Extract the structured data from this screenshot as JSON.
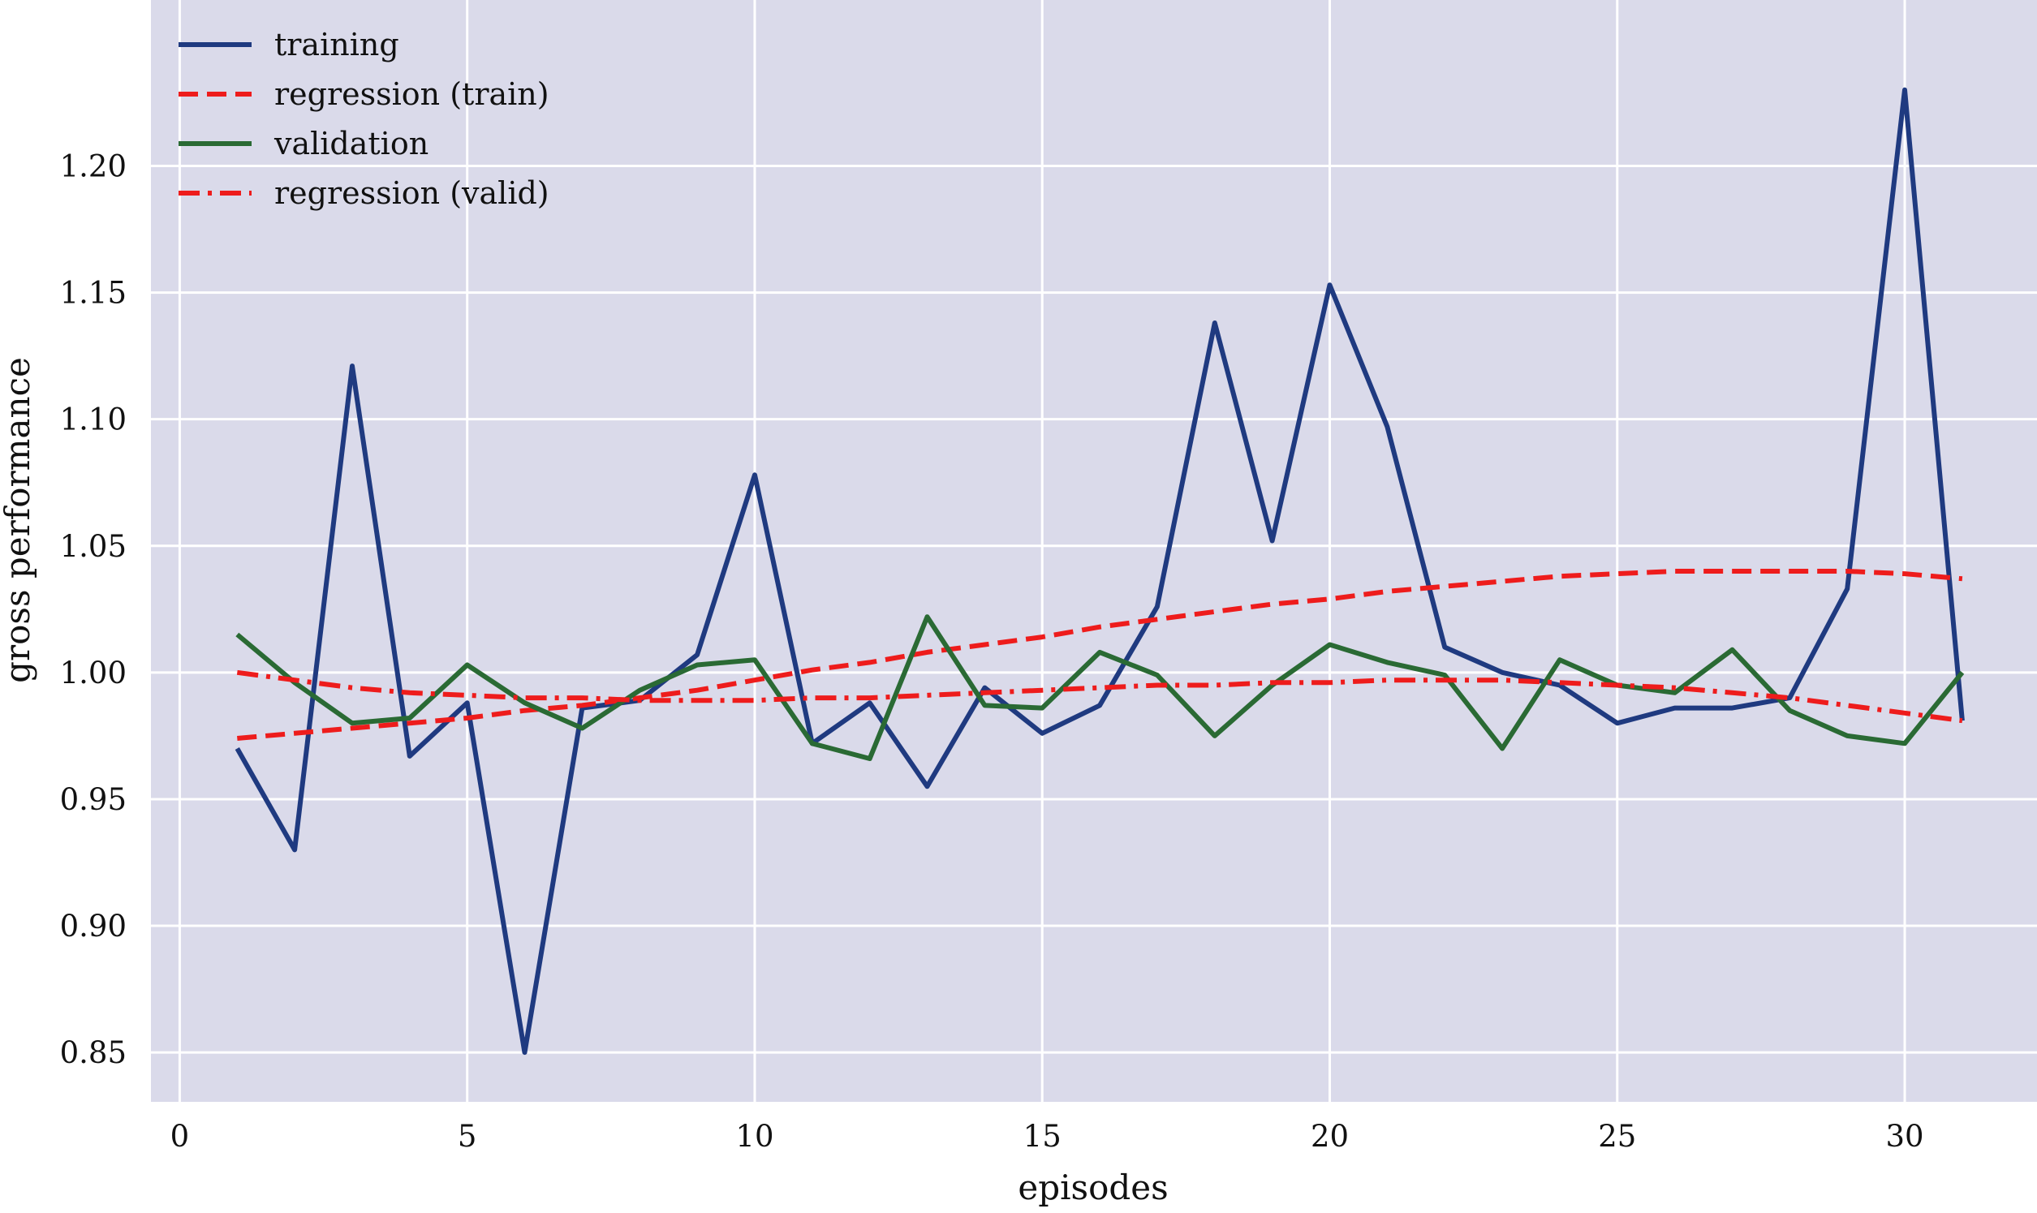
{
  "chart_data": {
    "type": "line",
    "title": "",
    "xlabel": "episodes",
    "ylabel": "gross performance",
    "xlim": [
      -0.5,
      32.3
    ],
    "ylim": [
      0.8305,
      1.2655
    ],
    "xticks": [
      0,
      5,
      10,
      15,
      20,
      25,
      30
    ],
    "yticks": [
      0.85,
      0.9,
      0.95,
      1.0,
      1.05,
      1.1,
      1.15,
      1.2
    ],
    "xtick_labels": [
      "0",
      "5",
      "10",
      "15",
      "20",
      "25",
      "30"
    ],
    "ytick_labels": [
      "0.85",
      "0.90",
      "0.95",
      "1.00",
      "1.05",
      "1.10",
      "1.15",
      "1.20"
    ],
    "grid": true,
    "legend_position": "top-left",
    "background_color": "#dadaea",
    "grid_color": "#ffffff",
    "x": [
      1,
      2,
      3,
      4,
      5,
      6,
      7,
      8,
      9,
      10,
      11,
      12,
      13,
      14,
      15,
      16,
      17,
      18,
      19,
      20,
      21,
      22,
      23,
      24,
      25,
      26,
      27,
      28,
      29,
      30,
      31
    ],
    "series": [
      {
        "name": "training",
        "color": "#1f3a80",
        "style": "solid",
        "values": [
          0.97,
          0.93,
          1.121,
          0.967,
          0.988,
          0.85,
          0.986,
          0.989,
          1.007,
          1.078,
          0.972,
          0.988,
          0.955,
          0.994,
          0.976,
          0.987,
          1.026,
          1.138,
          1.052,
          1.153,
          1.097,
          1.01,
          1.0,
          0.995,
          0.98,
          0.986,
          0.986,
          0.99,
          1.033,
          1.23,
          0.981
        ]
      },
      {
        "name": "regression (train)",
        "color": "#ee1c1c",
        "style": "dashed",
        "values": [
          0.974,
          0.976,
          0.978,
          0.98,
          0.982,
          0.985,
          0.987,
          0.99,
          0.993,
          0.997,
          1.001,
          1.004,
          1.008,
          1.011,
          1.014,
          1.018,
          1.021,
          1.024,
          1.027,
          1.029,
          1.032,
          1.034,
          1.036,
          1.038,
          1.039,
          1.04,
          1.04,
          1.04,
          1.04,
          1.039,
          1.037
        ]
      },
      {
        "name": "validation",
        "color": "#2a6a34",
        "style": "solid",
        "values": [
          1.015,
          0.996,
          0.98,
          0.982,
          1.003,
          0.988,
          0.978,
          0.993,
          1.003,
          1.005,
          0.972,
          0.966,
          1.022,
          0.987,
          0.986,
          1.008,
          0.999,
          0.975,
          0.995,
          1.011,
          1.004,
          0.999,
          0.97,
          1.005,
          0.995,
          0.992,
          1.009,
          0.985,
          0.975,
          0.972,
          1.0
        ]
      },
      {
        "name": "regression (valid)",
        "color": "#ee1c1c",
        "style": "dashdot",
        "values": [
          1.0,
          0.997,
          0.994,
          0.992,
          0.991,
          0.99,
          0.99,
          0.989,
          0.989,
          0.989,
          0.99,
          0.99,
          0.991,
          0.992,
          0.993,
          0.994,
          0.995,
          0.995,
          0.996,
          0.996,
          0.997,
          0.997,
          0.997,
          0.996,
          0.995,
          0.994,
          0.992,
          0.99,
          0.987,
          0.984,
          0.981
        ]
      }
    ]
  }
}
